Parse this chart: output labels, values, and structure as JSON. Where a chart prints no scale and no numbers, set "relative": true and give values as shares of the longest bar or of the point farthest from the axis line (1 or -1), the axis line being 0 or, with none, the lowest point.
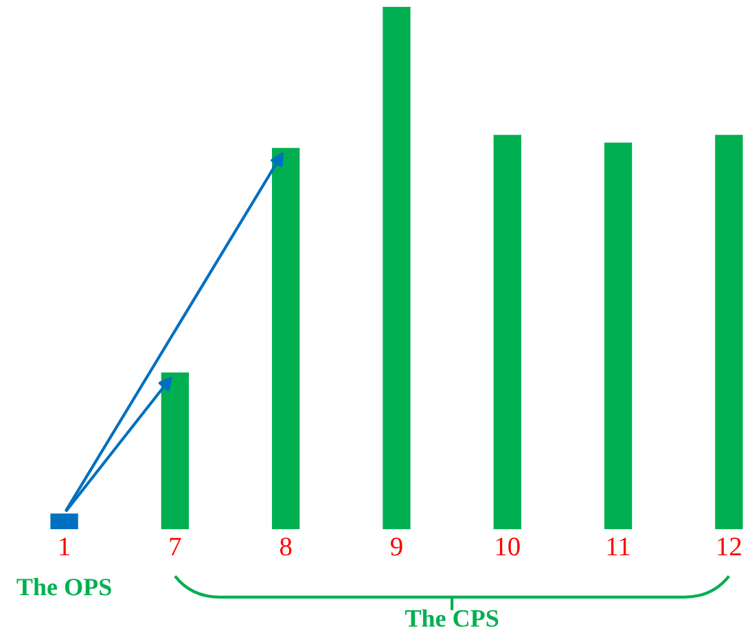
{
  "chart_data": {
    "type": "bar",
    "relative": true,
    "categories": [
      "1",
      "7",
      "8",
      "9",
      "10",
      "11",
      "12"
    ],
    "values": [
      0.03,
      0.3,
      0.73,
      1,
      0.755,
      0.74,
      0.755
    ],
    "colors": [
      "#0070c0",
      "#00b050",
      "#00b050",
      "#00b050",
      "#00b050",
      "#00b050",
      "#00b050"
    ],
    "annotations": [
      "The OPS",
      "The CPS"
    ],
    "grid": false
  }
}
